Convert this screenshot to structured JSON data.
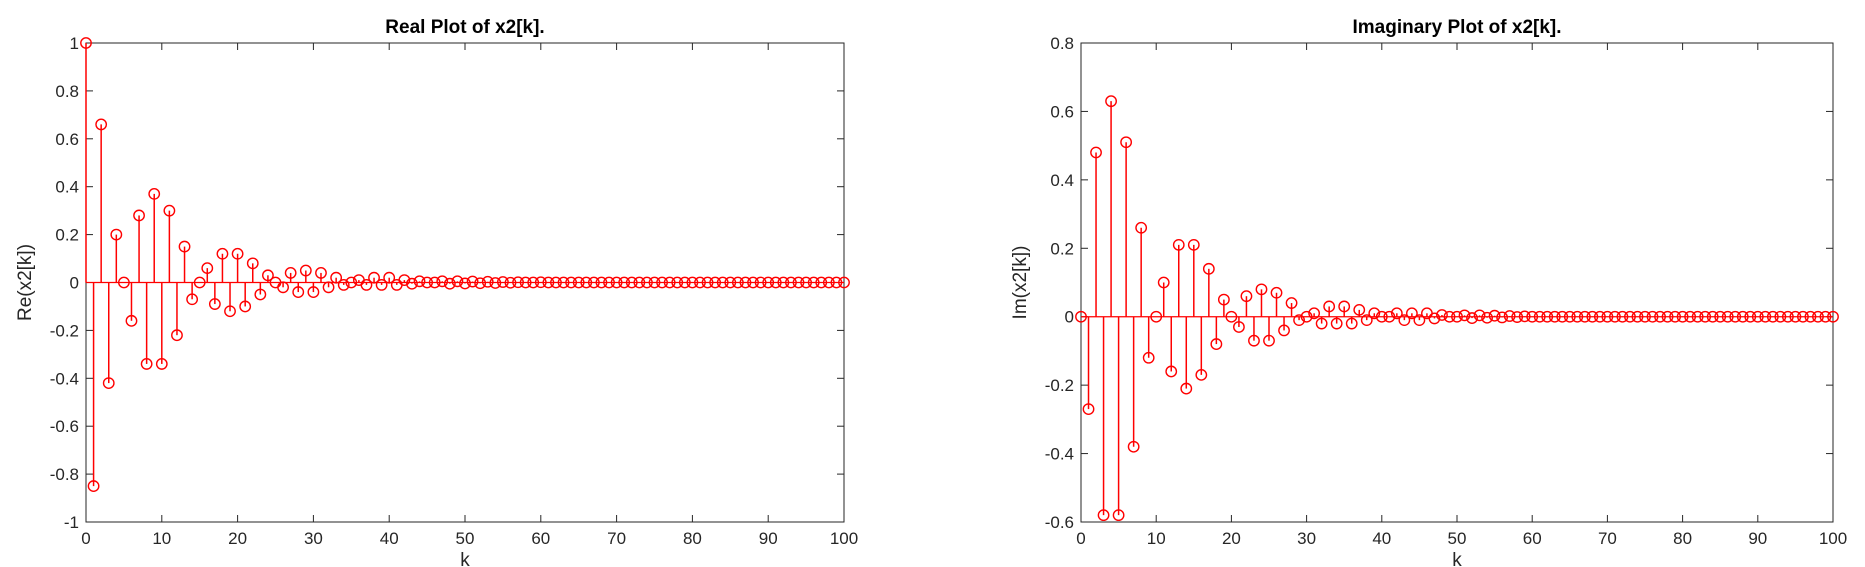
{
  "chart_data": [
    {
      "type": "stem",
      "title": "Real Plot of x2[k].",
      "xlabel": "k",
      "ylabel": "Re(x2[k])",
      "xlim": [
        0,
        100
      ],
      "ylim": [
        -1,
        1
      ],
      "xticks": [
        "0",
        "10",
        "20",
        "30",
        "40",
        "50",
        "60",
        "70",
        "80",
        "90",
        "100"
      ],
      "yticks": [
        "-1",
        "-0.8",
        "-0.6",
        "-0.4",
        "-0.2",
        "0",
        "0.2",
        "0.4",
        "0.6",
        "0.8",
        "1"
      ],
      "grid": false,
      "color": "#ff0000",
      "x": [
        0,
        1,
        2,
        3,
        4,
        5,
        6,
        7,
        8,
        9,
        10,
        11,
        12,
        13,
        14,
        15,
        16,
        17,
        18,
        19,
        20,
        21,
        22,
        23,
        24,
        25,
        26,
        27,
        28,
        29,
        30,
        31,
        32,
        33,
        34,
        35,
        36,
        37,
        38,
        39,
        40,
        41,
        42,
        43,
        44,
        45,
        46,
        47,
        48,
        49,
        50,
        51,
        52,
        53,
        54,
        55,
        56,
        57,
        58,
        59,
        60,
        61,
        62,
        63,
        64,
        65,
        66,
        67,
        68,
        69,
        70,
        71,
        72,
        73,
        74,
        75,
        76,
        77,
        78,
        79,
        80,
        81,
        82,
        83,
        84,
        85,
        86,
        87,
        88,
        89,
        90,
        91,
        92,
        93,
        94,
        95,
        96,
        97,
        98,
        99,
        100
      ],
      "y": [
        1.0,
        -0.85,
        0.66,
        -0.42,
        0.2,
        0.0,
        -0.16,
        0.28,
        -0.34,
        0.37,
        -0.34,
        0.3,
        -0.22,
        0.15,
        -0.07,
        0.0,
        0.06,
        -0.09,
        0.12,
        -0.12,
        0.12,
        -0.1,
        0.08,
        -0.05,
        0.03,
        0.0,
        -0.02,
        0.04,
        -0.04,
        0.05,
        -0.04,
        0.04,
        -0.02,
        0.02,
        -0.01,
        0.0,
        0.01,
        -0.01,
        0.02,
        -0.01,
        0.02,
        -0.01,
        0.01,
        -0.005,
        0.005,
        0.0,
        0.0,
        0.005,
        -0.005,
        0.005,
        -0.004,
        0.004,
        -0.003,
        0.003,
        -0.002,
        0.002,
        -0.001,
        0.001,
        0.0,
        0.0,
        0.001,
        0,
        0,
        0,
        0,
        0,
        0,
        0,
        0,
        0,
        0,
        0,
        0,
        0,
        0,
        0,
        0,
        0,
        0,
        0,
        0,
        0,
        0,
        0,
        0,
        0,
        0,
        0,
        0,
        0,
        0,
        0,
        0,
        0,
        0,
        0,
        0,
        0,
        0,
        0,
        0
      ]
    },
    {
      "type": "stem",
      "title": "Imaginary Plot of x2[k].",
      "xlabel": "k",
      "ylabel": "Im(x2[k])",
      "xlim": [
        0,
        100
      ],
      "ylim": [
        -0.6,
        0.8
      ],
      "xticks": [
        "0",
        "10",
        "20",
        "30",
        "40",
        "50",
        "60",
        "70",
        "80",
        "90",
        "100"
      ],
      "yticks": [
        "-0.6",
        "-0.4",
        "-0.2",
        "0",
        "0.2",
        "0.4",
        "0.6",
        "0.8"
      ],
      "grid": false,
      "color": "#ff0000",
      "x": [
        0,
        1,
        2,
        3,
        4,
        5,
        6,
        7,
        8,
        9,
        10,
        11,
        12,
        13,
        14,
        15,
        16,
        17,
        18,
        19,
        20,
        21,
        22,
        23,
        24,
        25,
        26,
        27,
        28,
        29,
        30,
        31,
        32,
        33,
        34,
        35,
        36,
        37,
        38,
        39,
        40,
        41,
        42,
        43,
        44,
        45,
        46,
        47,
        48,
        49,
        50,
        51,
        52,
        53,
        54,
        55,
        56,
        57,
        58,
        59,
        60,
        61,
        62,
        63,
        64,
        65,
        66,
        67,
        68,
        69,
        70,
        71,
        72,
        73,
        74,
        75,
        76,
        77,
        78,
        79,
        80,
        81,
        82,
        83,
        84,
        85,
        86,
        87,
        88,
        89,
        90,
        91,
        92,
        93,
        94,
        95,
        96,
        97,
        98,
        99,
        100
      ],
      "y": [
        0.0,
        -0.27,
        0.48,
        -0.58,
        0.63,
        -0.58,
        0.51,
        -0.38,
        0.26,
        -0.12,
        0.0,
        0.1,
        -0.16,
        0.21,
        -0.21,
        0.21,
        -0.17,
        0.14,
        -0.08,
        0.05,
        0.0,
        -0.03,
        0.06,
        -0.07,
        0.08,
        -0.07,
        0.07,
        -0.04,
        0.04,
        -0.01,
        0.0,
        0.01,
        -0.02,
        0.03,
        -0.02,
        0.03,
        -0.02,
        0.02,
        -0.01,
        0.01,
        0.0,
        0.0,
        0.01,
        -0.01,
        0.01,
        -0.01,
        0.01,
        -0.005,
        0.005,
        0.0,
        0.0,
        0.004,
        -0.004,
        0.004,
        -0.003,
        0.003,
        -0.002,
        0.002,
        -0.001,
        0.001,
        0,
        0,
        0,
        0,
        0,
        0,
        0,
        0,
        0,
        0,
        0,
        0,
        0,
        0,
        0,
        0,
        0,
        0,
        0,
        0,
        0,
        0,
        0,
        0,
        0,
        0,
        0,
        0,
        0,
        0,
        0,
        0,
        0,
        0,
        0,
        0,
        0,
        0,
        0,
        0,
        0
      ]
    }
  ]
}
